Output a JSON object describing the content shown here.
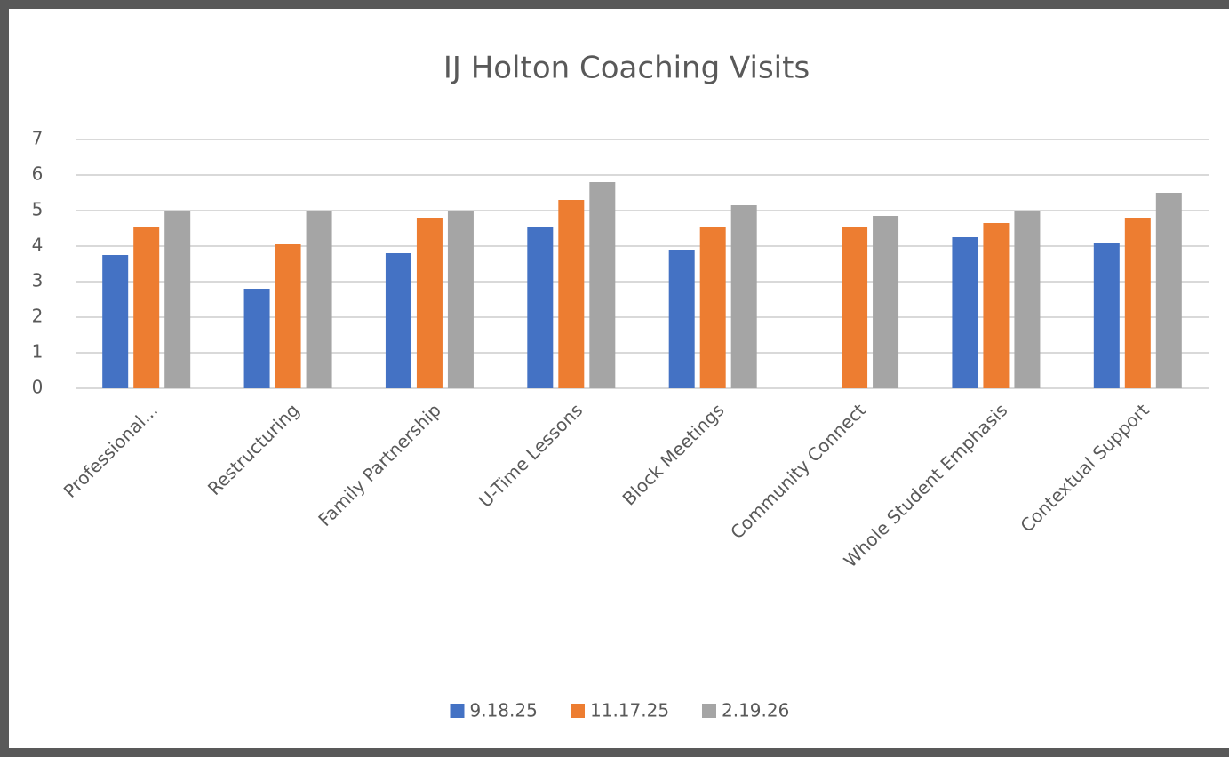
{
  "chart_data": {
    "type": "bar",
    "title": "IJ Holton Coaching Visits",
    "categories": [
      "Professional...",
      "Restructuring",
      "Family Partnership",
      "U-Time Lessons",
      "Block Meetings",
      "Community Connect",
      "Whole Student Emphasis",
      "Contextual Support"
    ],
    "series": [
      {
        "name": "9.18.25",
        "color": "#4472c4",
        "values": [
          3.75,
          2.8,
          3.8,
          4.55,
          3.9,
          null,
          4.25,
          4.1
        ]
      },
      {
        "name": "11.17.25",
        "color": "#ed7d31",
        "values": [
          4.55,
          4.05,
          4.8,
          5.3,
          4.55,
          4.55,
          4.65,
          4.8
        ]
      },
      {
        "name": "2.19.26",
        "color": "#a5a5a5",
        "values": [
          5.0,
          5.0,
          5.0,
          5.8,
          5.15,
          4.85,
          5.0,
          5.5
        ]
      }
    ],
    "ylim": [
      0,
      7
    ],
    "yticks": [
      0,
      1,
      2,
      3,
      4,
      5,
      6,
      7
    ],
    "grid": true,
    "legend": "bottom"
  }
}
